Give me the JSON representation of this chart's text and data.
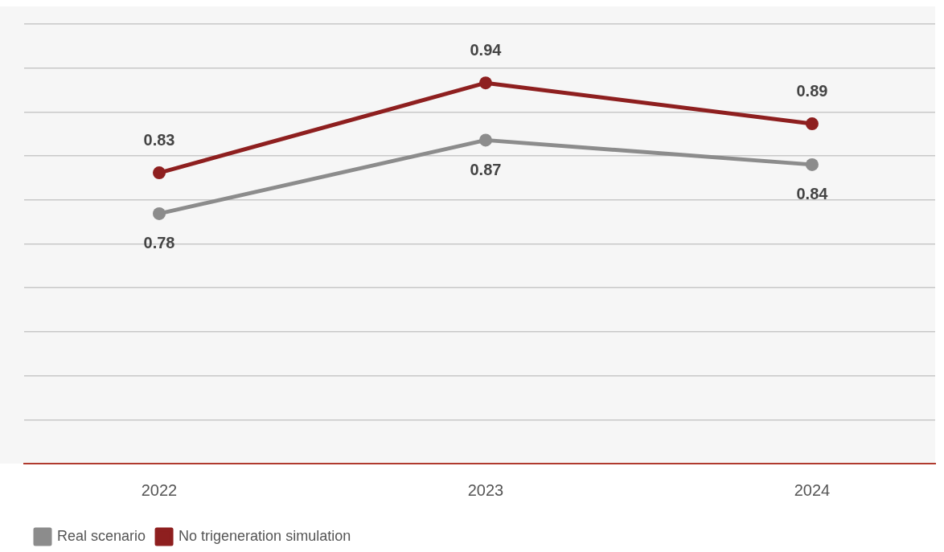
{
  "chart_data": {
    "type": "line",
    "categories": [
      "2022",
      "2023",
      "2024"
    ],
    "series": [
      {
        "name": "Real scenario",
        "color": "#8c8c8c",
        "values": [
          0.78,
          0.87,
          0.84
        ]
      },
      {
        "name": "No trigeneration simulation",
        "color": "#8e1f1f",
        "values": [
          0.83,
          0.94,
          0.89
        ]
      }
    ],
    "ylim": [
      0.474,
      1.012
    ],
    "yticks": [
      {
        "value": 0.474,
        "label": null
      },
      {
        "value": 0.5278,
        "label": null
      },
      {
        "value": 0.5816,
        "label": null
      },
      {
        "value": 0.6354,
        "label": null
      },
      {
        "value": 0.6892,
        "label": null
      },
      {
        "value": 0.743,
        "label": null
      },
      {
        "value": 0.7968,
        "label": null
      },
      {
        "value": 0.8506,
        "label": null
      },
      {
        "value": 0.9044,
        "label": null
      },
      {
        "value": 0.9582,
        "label": null
      },
      {
        "value": 1.012,
        "label": null
      }
    ],
    "grid": "y",
    "tick_labels": "x",
    "data_labels": true,
    "marker": "circle",
    "line_style": "solid",
    "legend": "bottom left"
  }
}
